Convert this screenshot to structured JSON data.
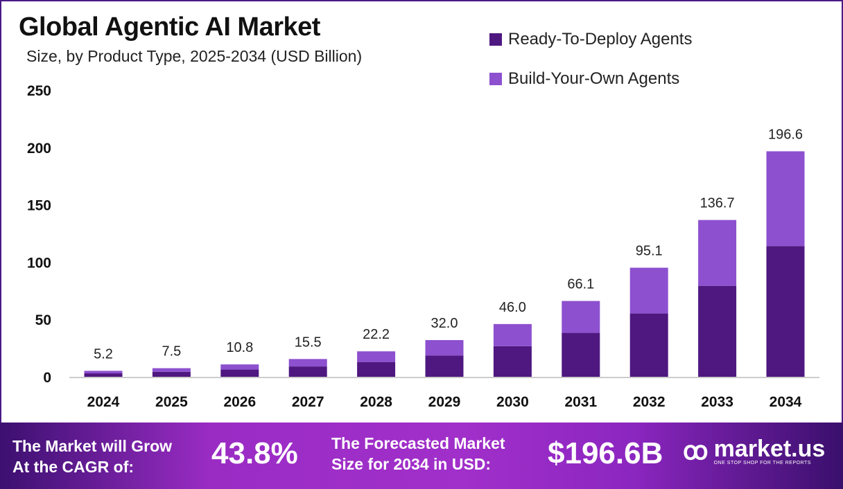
{
  "chart_data": {
    "type": "bar",
    "stacked": true,
    "title": "Global Agentic AI Market",
    "subtitle": "Size, by Product Type, 2025-2034 (USD Billion)",
    "categories": [
      "2024",
      "2025",
      "2026",
      "2027",
      "2028",
      "2029",
      "2030",
      "2031",
      "2032",
      "2033",
      "2034"
    ],
    "series": [
      {
        "name": "Ready-To-Deploy Agents",
        "color": "#4f1780",
        "values": [
          3.0,
          4.3,
          6.3,
          9.0,
          12.9,
          18.6,
          26.7,
          38.3,
          55.2,
          79.3,
          114.0
        ]
      },
      {
        "name": "Build-Your-Own Agents",
        "color": "#8d50cf",
        "values": [
          2.2,
          3.2,
          4.5,
          6.5,
          9.3,
          13.4,
          19.3,
          27.8,
          39.9,
          57.4,
          82.6
        ]
      }
    ],
    "totals": [
      "5.2",
      "7.5",
      "10.8",
      "15.5",
      "22.2",
      "32.0",
      "46.0",
      "66.1",
      "95.1",
      "136.7",
      "196.6"
    ],
    "yticks": [
      "0",
      "50",
      "100",
      "150",
      "200",
      "250"
    ],
    "ylim": [
      0,
      250
    ],
    "grid": false,
    "legend_position": "top-right"
  },
  "banner": {
    "cagr_label_1": "The Market will Grow",
    "cagr_label_2": "At the CAGR of:",
    "cagr_value": "43.8%",
    "forecast_label_1": "The Forecasted Market",
    "forecast_label_2": "Size for 2034 in USD:",
    "forecast_value": "$196.6B",
    "logo_name": "market.us",
    "logo_tagline": "ONE STOP SHOP FOR THE REPORTS"
  }
}
